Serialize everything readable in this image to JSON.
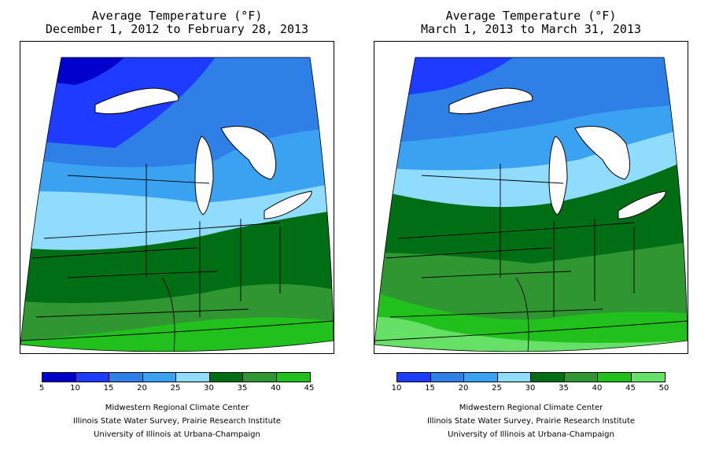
{
  "panels": [
    {
      "title_line1": "Average Temperature (°F)",
      "title_line2": "December 1, 2012 to February 28, 2013",
      "legend": {
        "breaks": [
          "5",
          "10",
          "15",
          "20",
          "25",
          "30",
          "35",
          "40",
          "45"
        ],
        "colors": [
          "#0000cc",
          "#1e3cff",
          "#2e7fe6",
          "#3ba2f2",
          "#8fdcff",
          "#006e14",
          "#2f9632",
          "#22c01c"
        ]
      },
      "bands": [
        {
          "range": "5-10",
          "color": "#0000cc"
        },
        {
          "range": "10-15",
          "color": "#1e3cff"
        },
        {
          "range": "15-20",
          "color": "#2e7fe6"
        },
        {
          "range": "20-25",
          "color": "#3ba2f2"
        },
        {
          "range": "25-30",
          "color": "#8fdcff"
        },
        {
          "range": "30-35",
          "color": "#006e14"
        },
        {
          "range": "35-40",
          "color": "#2f9632"
        },
        {
          "range": "40-45",
          "color": "#22c01c"
        }
      ]
    },
    {
      "title_line1": "Average Temperature (°F)",
      "title_line2": "March 1, 2013 to March 31, 2013",
      "legend": {
        "breaks": [
          "10",
          "15",
          "20",
          "25",
          "30",
          "35",
          "40",
          "45",
          "50"
        ],
        "colors": [
          "#1e3cff",
          "#2e7fe6",
          "#3ba2f2",
          "#8fdcff",
          "#006e14",
          "#2f9632",
          "#22c01c",
          "#66e066"
        ]
      },
      "bands": [
        {
          "range": "10-15",
          "color": "#1e3cff"
        },
        {
          "range": "15-20",
          "color": "#2e7fe6"
        },
        {
          "range": "20-25",
          "color": "#3ba2f2"
        },
        {
          "range": "25-30",
          "color": "#8fdcff"
        },
        {
          "range": "30-35",
          "color": "#006e14"
        },
        {
          "range": "35-40",
          "color": "#2f9632"
        },
        {
          "range": "40-45",
          "color": "#22c01c"
        },
        {
          "range": "45-50",
          "color": "#66e066"
        }
      ]
    }
  ],
  "credits": {
    "line1": "Midwestern Regional Climate Center",
    "line2": "Illinois State Water Survey, Prairie Research Institute",
    "line3": "University of Illinois at Urbana-Champaign"
  }
}
